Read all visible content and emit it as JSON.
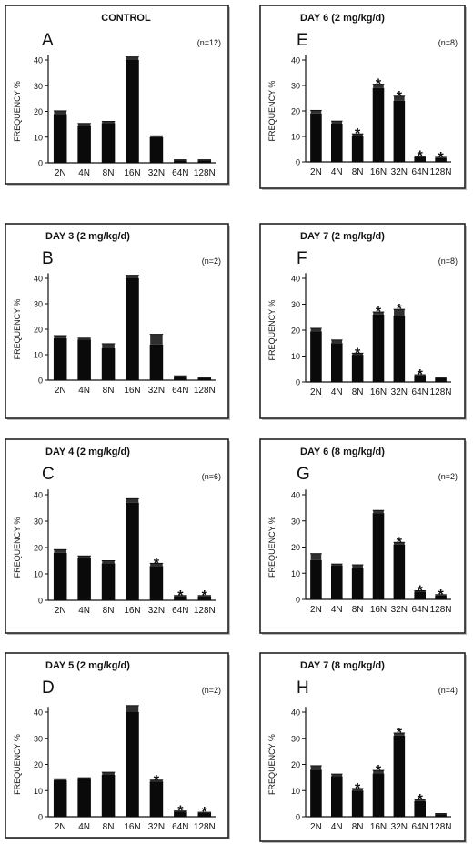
{
  "chart_data": [
    {
      "type": "bar",
      "panel_letter": "A",
      "title": "CONTROL",
      "n_label": "(n=12)",
      "ylabel": "FREQUENCY %",
      "categories": [
        "2N",
        "4N",
        "8N",
        "16N",
        "32N",
        "64N",
        "128N"
      ],
      "values": [
        19,
        14.5,
        15.5,
        40,
        10,
        1,
        1
      ],
      "errors": [
        1.2,
        0.8,
        0.6,
        1.2,
        0.5,
        0.2,
        0.2
      ],
      "significant": [
        false,
        false,
        false,
        false,
        false,
        false,
        false
      ],
      "yticks": [
        "0",
        "10",
        "20",
        "30",
        "40"
      ],
      "ylim": [
        0,
        45
      ]
    },
    {
      "type": "bar",
      "panel_letter": "B",
      "title": "DAY 3 (2 mg/kg/d)",
      "n_label": "(n=2)",
      "ylabel": "FREQUENCY %",
      "categories": [
        "2N",
        "4N",
        "8N",
        "16N",
        "32N",
        "64N",
        "128N"
      ],
      "values": [
        16.5,
        16,
        12.5,
        40,
        14,
        1.5,
        1
      ],
      "errors": [
        1,
        0.5,
        1.8,
        1.2,
        4,
        0.2,
        0.2
      ],
      "significant": [
        false,
        false,
        false,
        false,
        false,
        false,
        false
      ],
      "yticks": [
        "0",
        "10",
        "20",
        "30",
        "40"
      ],
      "ylim": [
        0,
        45
      ]
    },
    {
      "type": "bar",
      "panel_letter": "C",
      "title": "DAY 4 (2 mg/kg/d)",
      "n_label": "(n=6)",
      "ylabel": "FREQUENCY %",
      "categories": [
        "2N",
        "4N",
        "8N",
        "16N",
        "32N",
        "64N",
        "128N"
      ],
      "values": [
        18,
        16,
        14,
        37,
        13,
        1.5,
        1.5
      ],
      "errors": [
        1.2,
        0.8,
        1,
        1.5,
        1,
        0.3,
        0.3
      ],
      "significant": [
        false,
        false,
        false,
        false,
        true,
        true,
        true
      ],
      "yticks": [
        "0",
        "10",
        "20",
        "30",
        "40"
      ],
      "ylim": [
        0,
        45
      ]
    },
    {
      "type": "bar",
      "panel_letter": "D",
      "title": "DAY 5 (2 mg/kg/d)",
      "n_label": "(n=2)",
      "ylabel": "FREQUENCY %",
      "categories": [
        "2N",
        "4N",
        "8N",
        "16N",
        "32N",
        "64N",
        "128N"
      ],
      "values": [
        14,
        14.5,
        16,
        40,
        13.5,
        2,
        1.5
      ],
      "errors": [
        0.5,
        0.4,
        1,
        2.5,
        0.5,
        0.2,
        0.2
      ],
      "significant": [
        false,
        false,
        false,
        false,
        true,
        true,
        true
      ],
      "yticks": [
        "0",
        "10",
        "20",
        "30",
        "40"
      ],
      "ylim": [
        0,
        45
      ]
    },
    {
      "type": "bar",
      "panel_letter": "E",
      "title": "DAY 6 (2 mg/kg/d)",
      "n_label": "(n=8)",
      "ylabel": "FREQUENCY %",
      "categories": [
        "2N",
        "4N",
        "8N",
        "16N",
        "32N",
        "64N",
        "128N"
      ],
      "values": [
        19,
        15,
        10,
        29,
        24,
        2,
        1.5
      ],
      "errors": [
        1.2,
        1,
        1,
        1.5,
        1.8,
        0.3,
        0.3
      ],
      "significant": [
        false,
        false,
        true,
        true,
        true,
        true,
        true
      ],
      "yticks": [
        "0",
        "10",
        "20",
        "30",
        "40"
      ],
      "ylim": [
        0,
        45
      ]
    },
    {
      "type": "bar",
      "panel_letter": "F",
      "title": "DAY 7 (2 mg/kg/d)",
      "n_label": "(n=8)",
      "ylabel": "FREQUENCY %",
      "categories": [
        "2N",
        "4N",
        "8N",
        "16N",
        "32N",
        "64N",
        "128N"
      ],
      "values": [
        19.5,
        15,
        10.5,
        26,
        25.5,
        2.5,
        1.5
      ],
      "errors": [
        1.2,
        1.2,
        0.6,
        1,
        2.5,
        0.3,
        0.2
      ],
      "significant": [
        false,
        false,
        true,
        true,
        true,
        true,
        false
      ],
      "yticks": [
        "0",
        "10",
        "20",
        "30",
        "40"
      ],
      "ylim": [
        0,
        45
      ]
    },
    {
      "type": "bar",
      "panel_letter": "G",
      "title": "DAY 6 (8 mg/kg/d)",
      "n_label": "(n=2)",
      "ylabel": "FREQUENCY %",
      "categories": [
        "2N",
        "4N",
        "8N",
        "16N",
        "32N",
        "64N",
        "128N"
      ],
      "values": [
        15,
        13,
        12,
        33,
        21,
        3,
        1.5
      ],
      "errors": [
        2.5,
        0.5,
        1.2,
        1,
        0.8,
        0.3,
        0.3
      ],
      "significant": [
        false,
        false,
        false,
        false,
        true,
        true,
        true
      ],
      "yticks": [
        "0",
        "10",
        "20",
        "30",
        "40"
      ],
      "ylim": [
        0,
        45
      ]
    },
    {
      "type": "bar",
      "panel_letter": "H",
      "title": "DAY 7 (8 mg/kg/d)",
      "n_label": "(n=4)",
      "ylabel": "FREQUENCY %",
      "categories": [
        "2N",
        "4N",
        "8N",
        "16N",
        "32N",
        "64N",
        "128N"
      ],
      "values": [
        18,
        15.5,
        10,
        16.5,
        31,
        6,
        1
      ],
      "errors": [
        1.5,
        0.8,
        0.8,
        1.2,
        1,
        0.6,
        0.2
      ],
      "significant": [
        false,
        false,
        true,
        true,
        true,
        true,
        false
      ],
      "yticks": [
        "0",
        "10",
        "20",
        "30",
        "40"
      ],
      "ylim": [
        0,
        45
      ]
    }
  ]
}
